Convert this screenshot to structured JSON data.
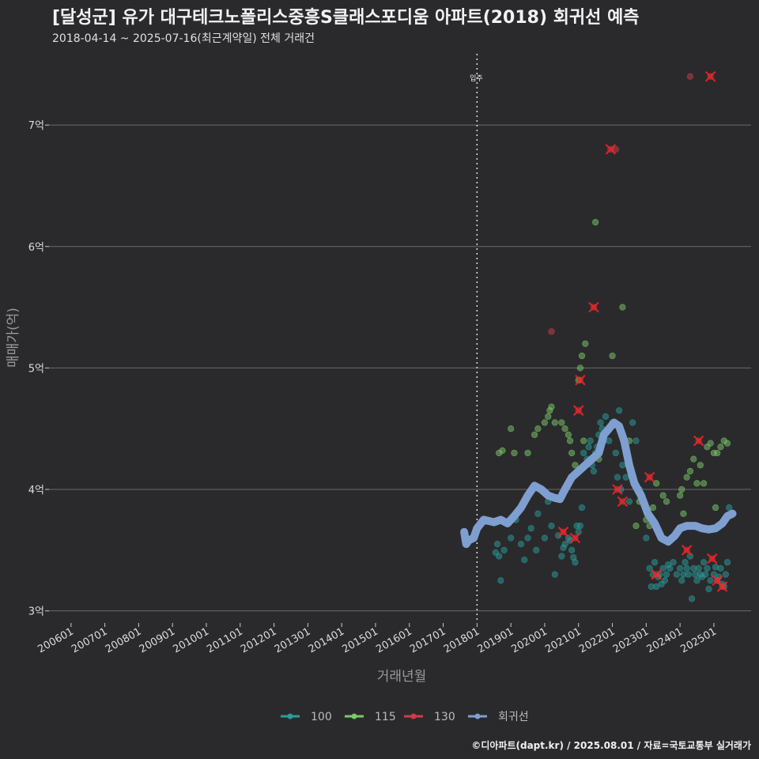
{
  "title": "[달성군] 유가 대구테크노폴리스중흥S클래스포디움 아파트(2018) 회귀선 예측",
  "subtitle": "2018-04-14 ~ 2025-07-16(최근계약일) 전체 거래건",
  "footer": "©디아파트(dapt.kr) / 2025.08.01 / 자료=국토교통부 실거래가",
  "colors": {
    "background": "#2a2a2c",
    "grid": "#6a6a6a",
    "s100": "#2a9d9b",
    "s115": "#7cc96a",
    "s130": "#d23b4a",
    "regression": "#7f9fd0",
    "highlight": "#ff2020"
  },
  "chart_data": {
    "type": "scatter",
    "xlabel": "거래년월",
    "ylabel": "매매가(억)",
    "x_range": [
      2005.35,
      2026.1
    ],
    "ylim": [
      2.9,
      7.6
    ],
    "x_ticks": [
      "200601",
      "200701",
      "200801",
      "200901",
      "201001",
      "201101",
      "201201",
      "201301",
      "201401",
      "201501",
      "201601",
      "201701",
      "201801",
      "201901",
      "202001",
      "202101",
      "202201",
      "202301",
      "202401",
      "202501"
    ],
    "y_ticks": [
      {
        "value": 3,
        "label": "3억"
      },
      {
        "value": 4,
        "label": "4억"
      },
      {
        "value": 5,
        "label": "5억"
      },
      {
        "value": 6,
        "label": "6억"
      },
      {
        "value": 7,
        "label": "7억"
      }
    ],
    "vline": {
      "x": 2018.0,
      "label": "입주"
    },
    "legend": [
      {
        "name": "100",
        "color": "#2a9d9b"
      },
      {
        "name": "115",
        "color": "#7cc96a"
      },
      {
        "name": "130",
        "color": "#d23b4a"
      },
      {
        "name": "회귀선",
        "color": "#7f9fd0"
      }
    ],
    "series": [
      {
        "name": "100",
        "points": [
          [
            2018.55,
            3.48
          ],
          [
            2018.6,
            3.55
          ],
          [
            2018.65,
            3.45
          ],
          [
            2018.7,
            3.25
          ],
          [
            2018.8,
            3.5
          ],
          [
            2019.0,
            3.6
          ],
          [
            2019.15,
            3.75
          ],
          [
            2019.3,
            3.55
          ],
          [
            2019.5,
            3.6
          ],
          [
            2019.75,
            3.5
          ],
          [
            2019.8,
            3.8
          ],
          [
            2020.0,
            3.6
          ],
          [
            2020.1,
            3.9
          ],
          [
            2020.2,
            3.7
          ],
          [
            2020.3,
            3.3
          ],
          [
            2020.5,
            3.45
          ],
          [
            2020.6,
            3.55
          ],
          [
            2020.7,
            3.6
          ],
          [
            2020.8,
            3.5
          ],
          [
            2020.9,
            3.4
          ],
          [
            2021.0,
            3.65
          ],
          [
            2021.05,
            3.7
          ],
          [
            2021.1,
            3.85
          ],
          [
            2021.15,
            4.3
          ],
          [
            2021.2,
            4.2
          ],
          [
            2021.3,
            4.35
          ],
          [
            2021.35,
            4.4
          ],
          [
            2021.4,
            4.2
          ],
          [
            2021.5,
            4.3
          ],
          [
            2021.6,
            4.45
          ],
          [
            2021.7,
            4.5
          ],
          [
            2021.8,
            4.6
          ],
          [
            2021.9,
            4.4
          ],
          [
            2022.0,
            4.55
          ],
          [
            2022.1,
            4.3
          ],
          [
            2022.15,
            4.1
          ],
          [
            2022.2,
            4.65
          ],
          [
            2022.25,
            4.0
          ],
          [
            2022.3,
            4.2
          ],
          [
            2022.4,
            4.1
          ],
          [
            2022.5,
            3.9
          ],
          [
            2022.6,
            4.55
          ],
          [
            2022.7,
            4.4
          ],
          [
            2022.8,
            4.0
          ],
          [
            2022.9,
            3.9
          ],
          [
            2023.0,
            3.6
          ],
          [
            2023.1,
            3.35
          ],
          [
            2023.15,
            3.2
          ],
          [
            2023.2,
            3.3
          ],
          [
            2023.25,
            3.4
          ],
          [
            2023.3,
            3.2
          ],
          [
            2023.4,
            3.3
          ],
          [
            2023.5,
            3.35
          ],
          [
            2023.55,
            3.25
          ],
          [
            2023.6,
            3.3
          ],
          [
            2023.7,
            3.35
          ],
          [
            2023.8,
            3.4
          ],
          [
            2023.9,
            3.3
          ],
          [
            2024.0,
            3.35
          ],
          [
            2024.05,
            3.25
          ],
          [
            2024.1,
            3.3
          ],
          [
            2024.15,
            3.4
          ],
          [
            2024.2,
            3.35
          ],
          [
            2024.25,
            3.3
          ],
          [
            2024.3,
            3.45
          ],
          [
            2024.35,
            3.1
          ],
          [
            2024.4,
            3.35
          ],
          [
            2024.45,
            3.3
          ],
          [
            2024.5,
            3.25
          ],
          [
            2024.55,
            3.35
          ],
          [
            2024.6,
            3.3
          ],
          [
            2024.7,
            3.4
          ],
          [
            2024.75,
            3.3
          ],
          [
            2024.8,
            3.35
          ],
          [
            2024.9,
            3.25
          ],
          [
            2025.0,
            3.3
          ],
          [
            2025.1,
            3.25
          ],
          [
            2025.2,
            3.35
          ],
          [
            2025.3,
            3.2
          ],
          [
            2025.35,
            3.3
          ],
          [
            2025.4,
            3.4
          ],
          [
            2025.45,
            3.85
          ],
          [
            2020.4,
            3.62
          ],
          [
            2020.55,
            3.52
          ],
          [
            2020.75,
            3.58
          ],
          [
            2020.85,
            3.44
          ],
          [
            2020.95,
            3.7
          ],
          [
            2021.25,
            4.25
          ],
          [
            2021.45,
            4.15
          ],
          [
            2021.55,
            4.35
          ],
          [
            2021.65,
            4.55
          ],
          [
            2021.75,
            4.4
          ],
          [
            2023.35,
            3.28
          ],
          [
            2023.45,
            3.22
          ],
          [
            2023.65,
            3.38
          ],
          [
            2024.65,
            3.28
          ],
          [
            2024.85,
            3.18
          ],
          [
            2025.05,
            3.36
          ],
          [
            2025.15,
            3.28
          ],
          [
            2025.25,
            3.22
          ],
          [
            2019.4,
            3.42
          ],
          [
            2019.6,
            3.68
          ]
        ]
      },
      {
        "name": "115",
        "points": [
          [
            2018.65,
            4.3
          ],
          [
            2018.75,
            4.32
          ],
          [
            2019.0,
            4.5
          ],
          [
            2019.1,
            4.3
          ],
          [
            2019.5,
            4.3
          ],
          [
            2019.7,
            4.45
          ],
          [
            2019.8,
            4.5
          ],
          [
            2020.0,
            4.55
          ],
          [
            2020.1,
            4.6
          ],
          [
            2020.15,
            4.65
          ],
          [
            2020.2,
            4.68
          ],
          [
            2020.3,
            4.55
          ],
          [
            2020.5,
            4.55
          ],
          [
            2020.6,
            4.5
          ],
          [
            2020.7,
            4.45
          ],
          [
            2020.75,
            4.4
          ],
          [
            2020.8,
            4.3
          ],
          [
            2020.9,
            4.2
          ],
          [
            2021.0,
            4.9
          ],
          [
            2021.05,
            5.0
          ],
          [
            2021.1,
            5.1
          ],
          [
            2021.15,
            4.4
          ],
          [
            2021.2,
            5.2
          ],
          [
            2021.5,
            6.2
          ],
          [
            2021.6,
            4.25
          ],
          [
            2022.0,
            5.1
          ],
          [
            2022.3,
            5.5
          ],
          [
            2022.5,
            4.4
          ],
          [
            2022.7,
            3.7
          ],
          [
            2022.8,
            3.9
          ],
          [
            2023.0,
            3.75
          ],
          [
            2023.1,
            3.7
          ],
          [
            2023.2,
            3.85
          ],
          [
            2023.3,
            4.05
          ],
          [
            2023.5,
            3.95
          ],
          [
            2023.6,
            3.9
          ],
          [
            2024.0,
            3.95
          ],
          [
            2024.05,
            4.0
          ],
          [
            2024.1,
            3.8
          ],
          [
            2024.2,
            4.1
          ],
          [
            2024.3,
            4.15
          ],
          [
            2024.4,
            4.25
          ],
          [
            2024.5,
            4.05
          ],
          [
            2024.6,
            4.2
          ],
          [
            2024.7,
            4.05
          ],
          [
            2024.8,
            4.35
          ],
          [
            2024.9,
            4.38
          ],
          [
            2025.0,
            4.3
          ],
          [
            2025.05,
            3.85
          ],
          [
            2025.1,
            4.3
          ],
          [
            2025.2,
            4.35
          ],
          [
            2025.3,
            4.4
          ],
          [
            2025.4,
            4.38
          ]
        ]
      },
      {
        "name": "130",
        "points": [
          [
            2020.2,
            5.3
          ],
          [
            2020.55,
            3.65
          ],
          [
            2020.9,
            3.6
          ],
          [
            2021.0,
            4.65
          ],
          [
            2021.05,
            4.9
          ],
          [
            2021.45,
            5.5
          ],
          [
            2021.95,
            6.8
          ],
          [
            2022.1,
            6.8
          ],
          [
            2022.3,
            3.9
          ],
          [
            2022.15,
            4.0
          ],
          [
            2023.1,
            4.1
          ],
          [
            2023.3,
            3.3
          ],
          [
            2024.2,
            3.5
          ],
          [
            2024.55,
            4.4
          ],
          [
            2024.9,
            7.4
          ],
          [
            2024.95,
            3.43
          ],
          [
            2025.1,
            3.25
          ],
          [
            2025.25,
            3.2
          ],
          [
            2024.3,
            7.4
          ]
        ]
      }
    ],
    "highlights": [
      [
        2020.55,
        3.65
      ],
      [
        2020.9,
        3.6
      ],
      [
        2021.0,
        4.65
      ],
      [
        2021.05,
        4.9
      ],
      [
        2021.45,
        5.5
      ],
      [
        2021.95,
        6.8
      ],
      [
        2022.15,
        4.0
      ],
      [
        2022.3,
        3.9
      ],
      [
        2023.1,
        4.1
      ],
      [
        2023.3,
        3.3
      ],
      [
        2024.2,
        3.5
      ],
      [
        2024.55,
        4.4
      ],
      [
        2024.9,
        7.4
      ],
      [
        2024.95,
        3.43
      ],
      [
        2025.1,
        3.25
      ],
      [
        2025.25,
        3.2
      ]
    ],
    "regression": [
      [
        2017.62,
        3.65
      ],
      [
        2017.68,
        3.55
      ],
      [
        2017.75,
        3.58
      ],
      [
        2017.9,
        3.6
      ],
      [
        2018.0,
        3.68
      ],
      [
        2018.2,
        3.75
      ],
      [
        2018.5,
        3.73
      ],
      [
        2018.7,
        3.75
      ],
      [
        2018.9,
        3.72
      ],
      [
        2019.1,
        3.78
      ],
      [
        2019.3,
        3.85
      ],
      [
        2019.5,
        3.95
      ],
      [
        2019.7,
        4.03
      ],
      [
        2019.9,
        4.0
      ],
      [
        2020.1,
        3.95
      ],
      [
        2020.3,
        3.93
      ],
      [
        2020.45,
        3.92
      ],
      [
        2020.6,
        4.0
      ],
      [
        2020.8,
        4.1
      ],
      [
        2021.0,
        4.15
      ],
      [
        2021.2,
        4.2
      ],
      [
        2021.4,
        4.25
      ],
      [
        2021.6,
        4.3
      ],
      [
        2021.75,
        4.45
      ],
      [
        2021.9,
        4.5
      ],
      [
        2022.05,
        4.55
      ],
      [
        2022.2,
        4.52
      ],
      [
        2022.35,
        4.4
      ],
      [
        2022.5,
        4.2
      ],
      [
        2022.65,
        4.05
      ],
      [
        2022.85,
        3.95
      ],
      [
        2023.05,
        3.8
      ],
      [
        2023.25,
        3.72
      ],
      [
        2023.45,
        3.6
      ],
      [
        2023.65,
        3.57
      ],
      [
        2023.85,
        3.62
      ],
      [
        2024.0,
        3.68
      ],
      [
        2024.2,
        3.7
      ],
      [
        2024.45,
        3.7
      ],
      [
        2024.65,
        3.68
      ],
      [
        2024.85,
        3.67
      ],
      [
        2025.05,
        3.68
      ],
      [
        2025.25,
        3.72
      ],
      [
        2025.4,
        3.78
      ],
      [
        2025.55,
        3.8
      ]
    ]
  }
}
